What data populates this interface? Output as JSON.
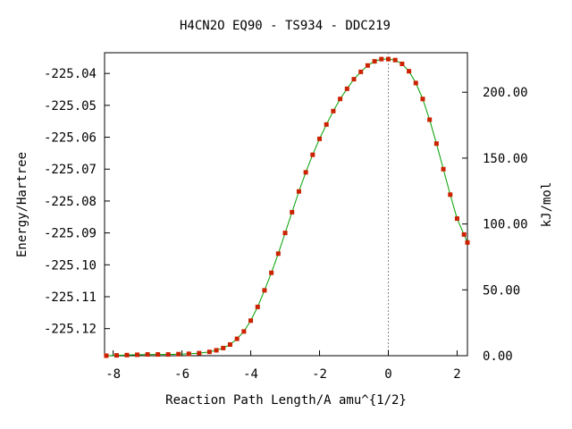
{
  "chart_data": {
    "type": "line",
    "title": "H4CN2O   EQ90 - TS934 - DDC219",
    "xlabel": "Reaction Path Length/A amu^{1/2}",
    "ylabel": "Energy/Hartree",
    "y2label": "kJ/mol",
    "xlim": [
      -8.25,
      2.3
    ],
    "ylim": [
      -225.1285,
      -225.0335
    ],
    "y2lim": [
      0,
      230
    ],
    "x_ticks": [
      "-8",
      "-6",
      "-4",
      "-2",
      "0",
      "2"
    ],
    "x_tick_values": [
      -8,
      -6,
      -4,
      -2,
      0,
      2
    ],
    "y_ticks": [
      "-225.04",
      "-225.05",
      "-225.06",
      "-225.07",
      "-225.08",
      "-225.09",
      "-225.10",
      "-225.11",
      "-225.12"
    ],
    "y_tick_values": [
      -225.04,
      -225.05,
      -225.06,
      -225.07,
      -225.08,
      -225.09,
      -225.1,
      -225.11,
      -225.12
    ],
    "y2_ticks": [
      "0.00",
      "50.00",
      "100.00",
      "150.00",
      "200.00"
    ],
    "y2_tick_values": [
      0,
      50,
      100,
      150,
      200
    ],
    "ts_marker_x": 0,
    "colors": {
      "curve": "#00a000",
      "points": "#cc2200",
      "ts_line": "#888888"
    },
    "series": [
      {
        "x": [
          -8.2,
          -7.9,
          -7.6,
          -7.3,
          -7.0,
          -6.7,
          -6.4,
          -6.1,
          -5.8,
          -5.5,
          -5.2,
          -5.0,
          -4.8,
          -4.6,
          -4.4,
          -4.2,
          -4.0,
          -3.8,
          -3.6,
          -3.4,
          -3.2,
          -3.0,
          -2.8,
          -2.6,
          -2.4,
          -2.2,
          -2.0,
          -1.8,
          -1.6,
          -1.4,
          -1.2,
          -1.0,
          -0.8,
          -0.6,
          -0.4,
          -0.2,
          0.0,
          0.2,
          0.4,
          0.6,
          0.8,
          1.0,
          1.2,
          1.4,
          1.6,
          1.8,
          2.0,
          2.2,
          2.3
        ],
        "y": [
          -225.1285,
          -225.1284,
          -225.1283,
          -225.1282,
          -225.1281,
          -225.1281,
          -225.1281,
          -225.128,
          -225.1279,
          -225.1277,
          -225.1273,
          -225.1268,
          -225.1261,
          -225.125,
          -225.1232,
          -225.1209,
          -225.1175,
          -225.1132,
          -225.108,
          -225.1025,
          -225.0965,
          -225.09,
          -225.0835,
          -225.077,
          -225.071,
          -225.0655,
          -225.0605,
          -225.056,
          -225.0518,
          -225.048,
          -225.0448,
          -225.0418,
          -225.0395,
          -225.0375,
          -225.0362,
          -225.0355,
          -225.0355,
          -225.0358,
          -225.037,
          -225.0393,
          -225.043,
          -225.048,
          -225.0545,
          -225.062,
          -225.07,
          -225.078,
          -225.0855,
          -225.0905,
          -225.093
        ]
      }
    ]
  }
}
